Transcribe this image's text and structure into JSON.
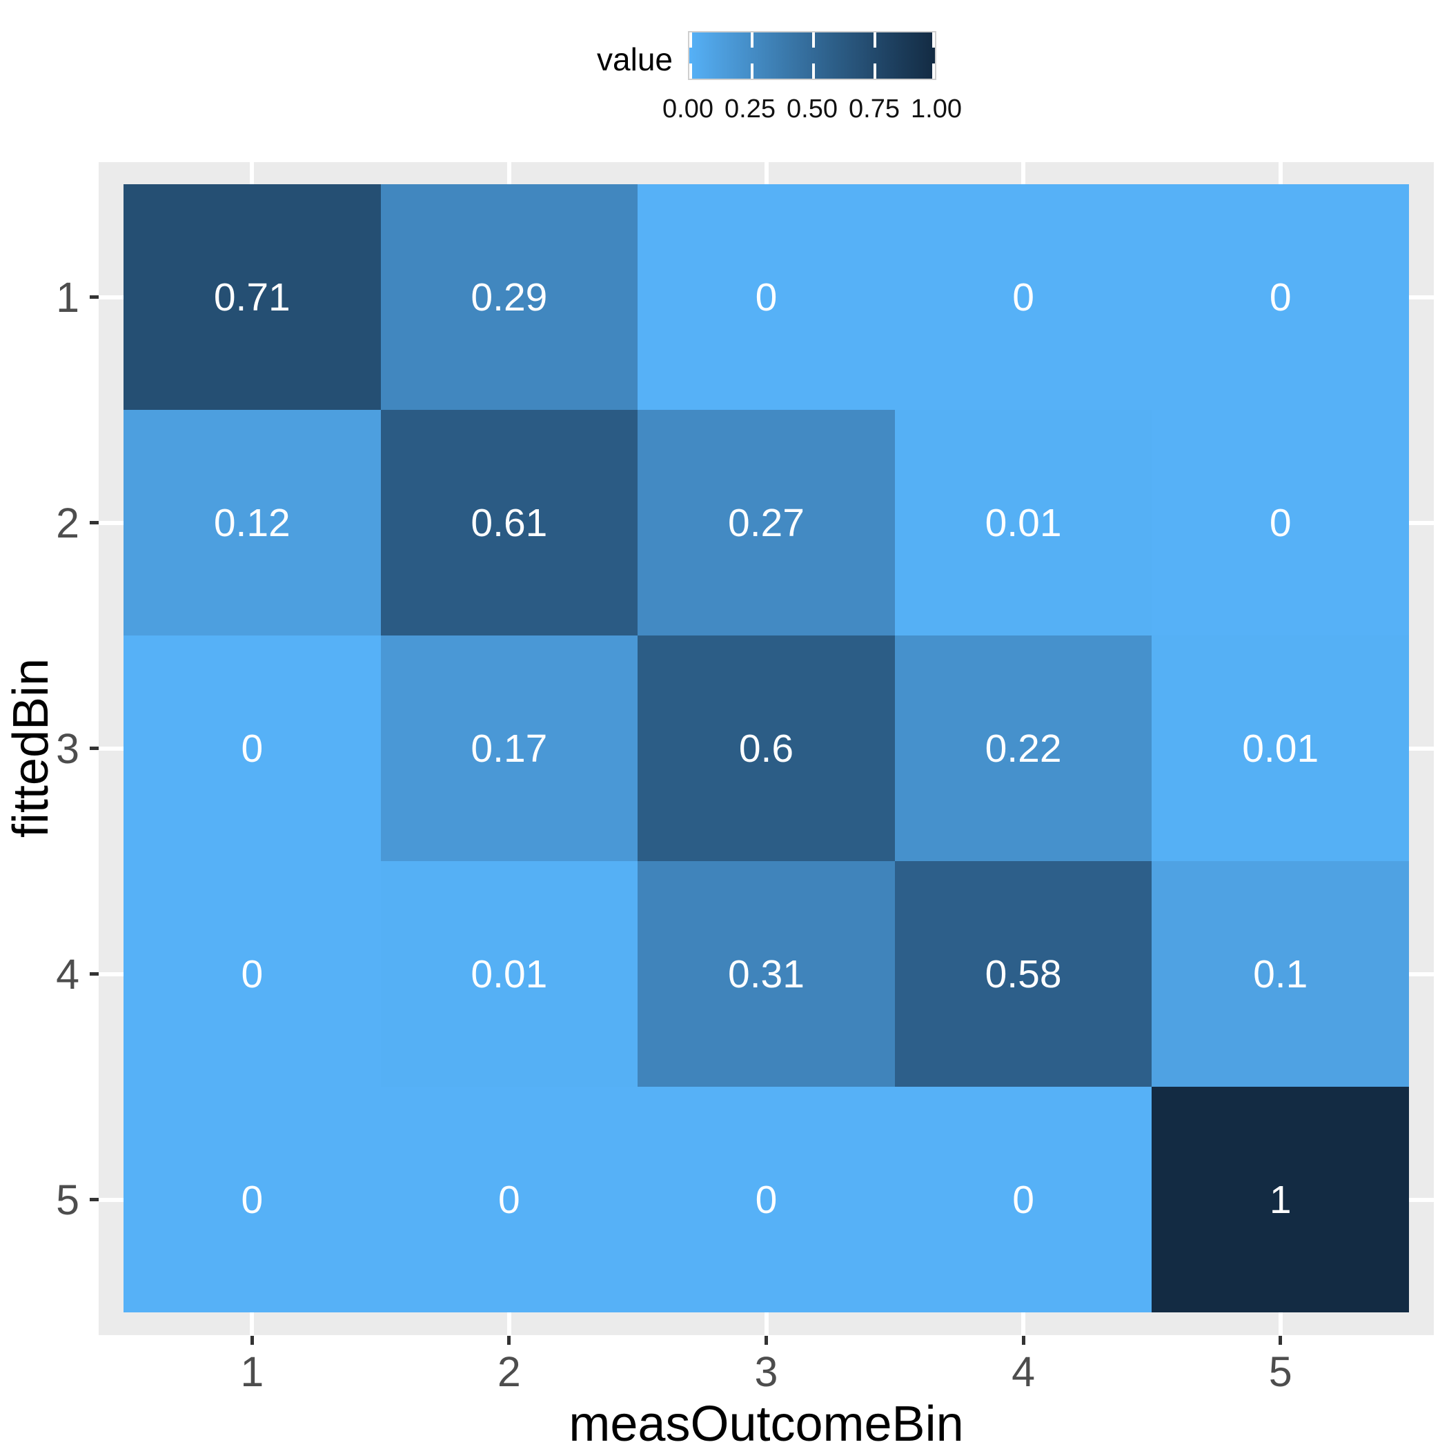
{
  "chart_data": {
    "type": "heatmap",
    "title": "",
    "xlabel": "measOutcomeBin",
    "ylabel": "fittedBin",
    "x_categories": [
      "1",
      "2",
      "3",
      "4",
      "5"
    ],
    "y_categories": [
      "1",
      "2",
      "3",
      "4",
      "5"
    ],
    "values": [
      [
        0.71,
        0.29,
        0,
        0,
        0
      ],
      [
        0.12,
        0.61,
        0.27,
        0.01,
        0
      ],
      [
        0,
        0.17,
        0.6,
        0.22,
        0.01
      ],
      [
        0,
        0.01,
        0.31,
        0.58,
        0.1
      ],
      [
        0,
        0,
        0,
        0,
        1
      ]
    ],
    "value_labels": [
      [
        "0.71",
        "0.29",
        "0",
        "0",
        "0"
      ],
      [
        "0.12",
        "0.61",
        "0.27",
        "0.01",
        "0"
      ],
      [
        "0",
        "0.17",
        "0.6",
        "0.22",
        "0.01"
      ],
      [
        "0",
        "0.01",
        "0.31",
        "0.58",
        "0.1"
      ],
      [
        "0",
        "0",
        "0",
        "0",
        "1"
      ]
    ],
    "legend": {
      "title": "value",
      "tick_labels": [
        "0.00",
        "0.25",
        "0.50",
        "0.75",
        "1.00"
      ],
      "tick_values": [
        0,
        0.25,
        0.5,
        0.75,
        1
      ],
      "range": [
        0,
        1
      ],
      "position": "top"
    },
    "colors": {
      "scale_low": "#56B1F7",
      "scale_high": "#132B43",
      "panel_background": "#EBEBEB",
      "gridline": "#FFFFFF",
      "tick_mark": "#333333",
      "tick_label": "#4D4D4D",
      "axis_title": "#000000",
      "cell_text": "#FFFFFF"
    },
    "grid": true,
    "axis_tick_positions_note": "discrete axes 1-5, tiles centered on ticks"
  }
}
